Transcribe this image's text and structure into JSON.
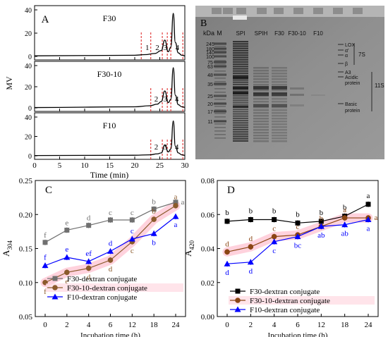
{
  "chart_data": [
    {
      "panel": "A",
      "type": "line",
      "xlabel": "Time (min)",
      "ylabel": "MV",
      "x_ticks": [
        "0",
        "5",
        "10",
        "15",
        "20",
        "25",
        "30"
      ],
      "xlim": [
        0,
        30
      ],
      "subplots": [
        {
          "name": "F30",
          "ylim": [
            0,
            40
          ],
          "y_ticks": [
            "0",
            "20",
            "40"
          ],
          "peaks": [
            {
              "label": "1",
              "x": 22.5
            },
            {
              "label": "2",
              "x": 24.5
            },
            {
              "label": "3",
              "x": 26.1
            },
            {
              "label": "4",
              "x": 28.5
            }
          ],
          "trace": [
            [
              0,
              0.5
            ],
            [
              20,
              1
            ],
            [
              22,
              1.5
            ],
            [
              24,
              2.5
            ],
            [
              25.3,
              5
            ],
            [
              26,
              14
            ],
            [
              26.7,
              4
            ],
            [
              27.2,
              8
            ],
            [
              27.7,
              37
            ],
            [
              28.1,
              12
            ],
            [
              28.7,
              3
            ],
            [
              29.4,
              1
            ],
            [
              30,
              0.5
            ]
          ]
        },
        {
          "name": "F30-10",
          "ylim": [
            0,
            40
          ],
          "y_ticks": [
            "0",
            "20",
            "40"
          ],
          "peaks": [
            {
              "label": "2",
              "x": 24.3
            },
            {
              "label": "3",
              "x": 26.1
            },
            {
              "label": "4",
              "x": 28.4
            }
          ],
          "trace": [
            [
              0,
              0.3
            ],
            [
              20,
              1
            ],
            [
              23,
              2
            ],
            [
              24.5,
              3.5
            ],
            [
              25.3,
              6
            ],
            [
              26,
              16
            ],
            [
              26.7,
              5
            ],
            [
              27.2,
              8
            ],
            [
              27.7,
              38
            ],
            [
              28.1,
              12
            ],
            [
              28.7,
              3
            ],
            [
              29.4,
              1
            ],
            [
              30,
              0.5
            ]
          ]
        },
        {
          "name": "F10",
          "ylim": [
            0,
            40
          ],
          "y_ticks": [
            "0",
            "20",
            "40"
          ],
          "peaks": [
            {
              "label": "2",
              "x": 24.3
            },
            {
              "label": "3",
              "x": 26.1
            },
            {
              "label": "4",
              "x": 28.4
            }
          ],
          "trace": [
            [
              0,
              0.3
            ],
            [
              20,
              0.6
            ],
            [
              23,
              1
            ],
            [
              24.5,
              2
            ],
            [
              25.3,
              3
            ],
            [
              26,
              11
            ],
            [
              26.7,
              4
            ],
            [
              27.2,
              7
            ],
            [
              27.7,
              36
            ],
            [
              28.1,
              10
            ],
            [
              28.7,
              3
            ],
            [
              29.4,
              1
            ],
            [
              30,
              0.5
            ]
          ]
        }
      ],
      "dividers": [
        21.3,
        23.2,
        25.5,
        26.5,
        27.2,
        29.6
      ]
    },
    {
      "panel": "B",
      "type": "gel",
      "kda_label": "kDa",
      "marker_label": "M",
      "lanes": [
        "SPI",
        "SPIH",
        "F30",
        "F30-10",
        "F10"
      ],
      "marker_kda": [
        "245",
        "180",
        "140",
        "100",
        "75",
        "63",
        "48",
        "35",
        "25",
        "20",
        "17",
        "11"
      ],
      "bands_right": [
        "LOX",
        "α'",
        "α",
        "β",
        "A3",
        "Acidic protein",
        "Basic protein"
      ],
      "groups": [
        "7S",
        "11S"
      ]
    },
    {
      "panel": "C",
      "type": "line",
      "ylabel": "A",
      "ylabel_sub": "304",
      "xlabel": "Incubation time (h)",
      "categories": [
        "0",
        "2",
        "4",
        "6",
        "12",
        "18",
        "24"
      ],
      "ylim": [
        0.05,
        0.25
      ],
      "y_ticks": [
        "0.05",
        "0.10",
        "0.15",
        "0.20",
        "0.25"
      ],
      "series": [
        {
          "name": "F30-dextran conjugate",
          "color": "#707070",
          "marker": "square",
          "values": [
            0.159,
            0.177,
            0.184,
            0.192,
            0.192,
            0.208,
            0.218
          ],
          "letters": [
            "f",
            "e",
            "d",
            "c",
            "c",
            "b",
            "a"
          ]
        },
        {
          "name": "F30-10-dextran conjugate",
          "color": "#8b5a2b",
          "marker": "circle",
          "values": [
            0.1,
            0.115,
            0.121,
            0.133,
            0.16,
            0.193,
            0.213
          ],
          "letters": [
            "f",
            "e",
            "d",
            "d",
            "c",
            "b",
            "a"
          ]
        },
        {
          "name": "F10-dextran conjugate",
          "color": "#0000ff",
          "marker": "triangle",
          "values": [
            0.125,
            0.137,
            0.131,
            0.146,
            0.164,
            0.172,
            0.197
          ],
          "letters": [
            "f",
            "e",
            "ef",
            "d",
            "c",
            "b",
            "a"
          ]
        }
      ]
    },
    {
      "panel": "D",
      "type": "line",
      "ylabel": "A",
      "ylabel_sub": "420",
      "xlabel": "Incubation time (h)",
      "categories": [
        "0",
        "2",
        "4",
        "6",
        "12",
        "18",
        "24"
      ],
      "ylim": [
        0.0,
        0.08
      ],
      "y_ticks": [
        "0.00",
        "0.02",
        "0.04",
        "0.06",
        "0.08"
      ],
      "series": [
        {
          "name": "F30-dextran conjugate",
          "color": "#000000",
          "marker": "square",
          "values": [
            0.056,
            0.057,
            0.057,
            0.055,
            0.056,
            0.059,
            0.066
          ],
          "letters": [
            "b",
            "b",
            "b",
            "b",
            "b",
            "b",
            "a"
          ]
        },
        {
          "name": "F30-10-dextran conjugate",
          "color": "#8b4513",
          "marker": "circle",
          "values": [
            0.038,
            0.041,
            0.047,
            0.048,
            0.053,
            0.058,
            0.058
          ],
          "letters": [
            "d",
            "d",
            "c",
            "c",
            "b",
            "a",
            "a"
          ]
        },
        {
          "name": "F10-dextran conjugate",
          "color": "#0000ff",
          "marker": "triangle",
          "values": [
            0.031,
            0.032,
            0.044,
            0.047,
            0.053,
            0.054,
            0.057
          ],
          "letters": [
            "d",
            "d",
            "c",
            "bc",
            "ab",
            "ab",
            "a"
          ]
        }
      ]
    }
  ]
}
